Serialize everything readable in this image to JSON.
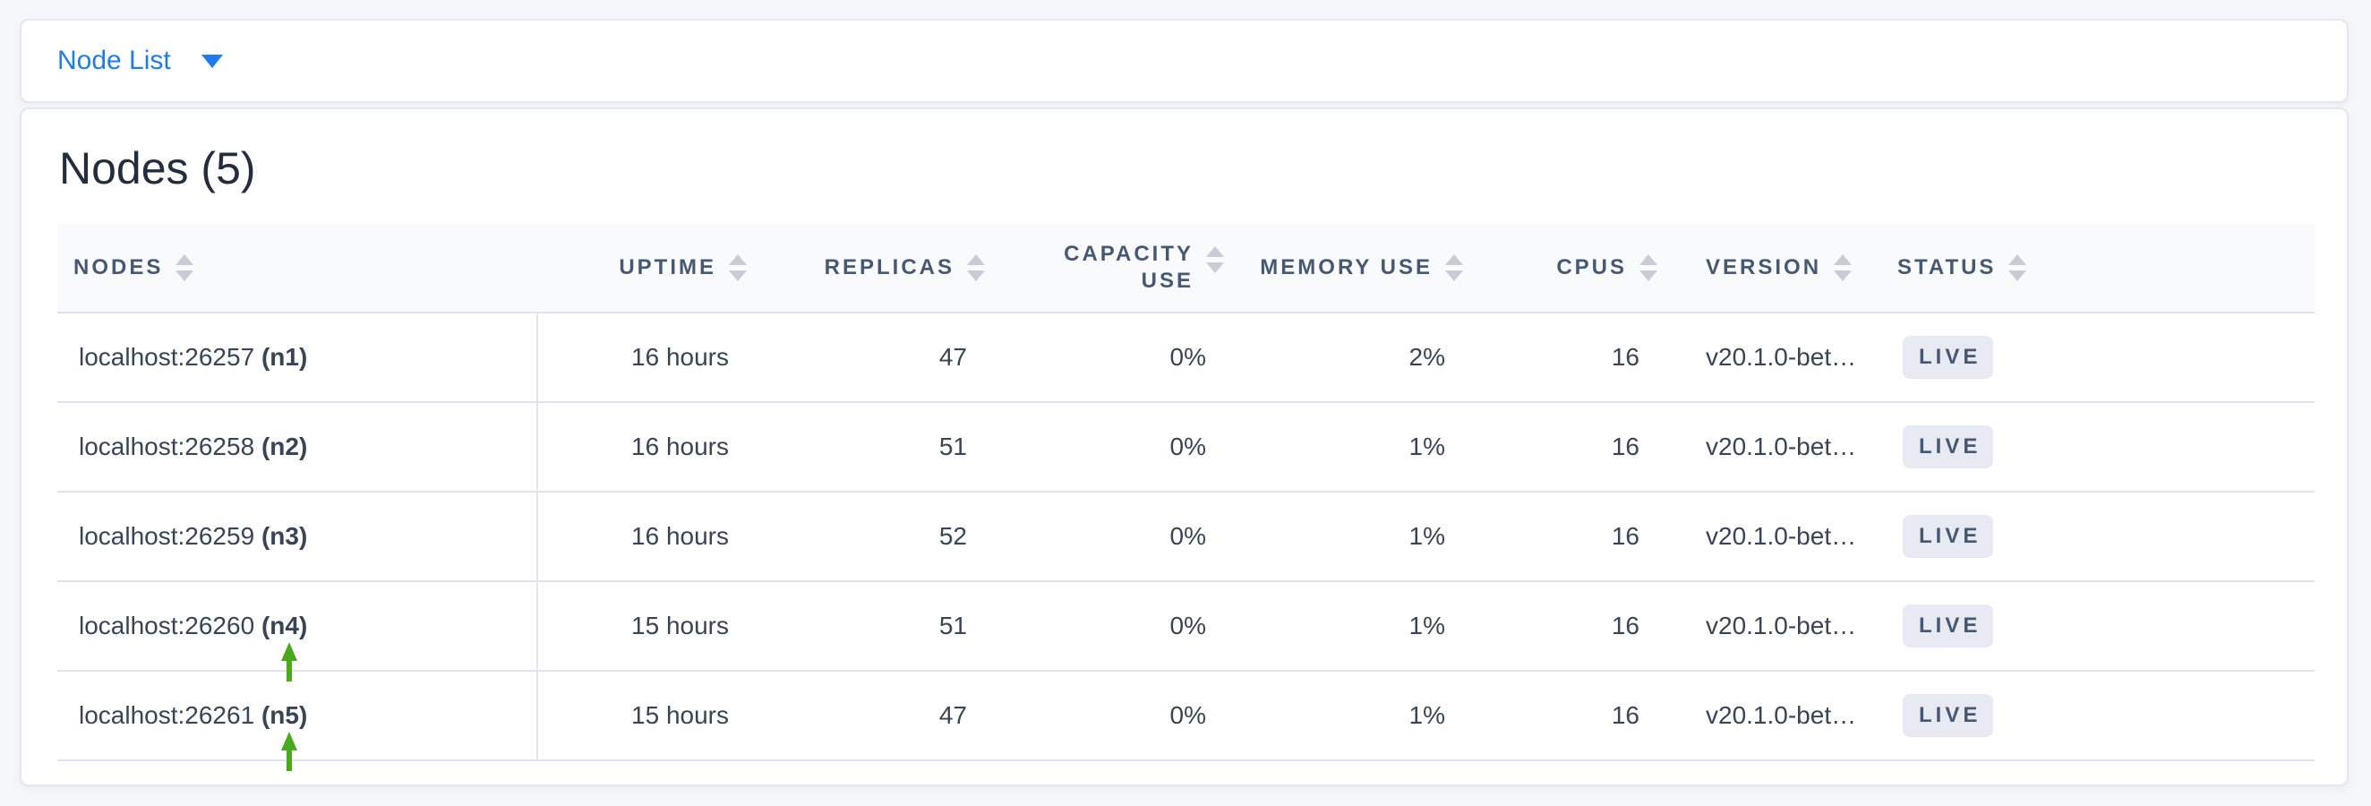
{
  "toolbar": {
    "dropdown_label": "Node List"
  },
  "main": {
    "title": "Nodes (5)",
    "table": {
      "columns": [
        {
          "key": "node",
          "label": "NODES",
          "align": "left"
        },
        {
          "key": "uptime",
          "label": "UPTIME",
          "align": "right"
        },
        {
          "key": "replicas",
          "label": "REPLICAS",
          "align": "right"
        },
        {
          "key": "capacity",
          "label": "CAPACITY USE",
          "align": "right",
          "lines": [
            "CAPACITY",
            "USE"
          ]
        },
        {
          "key": "memory",
          "label": "MEMORY USE",
          "align": "right"
        },
        {
          "key": "cpus",
          "label": "CPUS",
          "align": "right"
        },
        {
          "key": "version",
          "label": "VERSION",
          "align": "left"
        },
        {
          "key": "status",
          "label": "STATUS",
          "align": "left"
        }
      ],
      "rows": [
        {
          "node_address": "localhost:26257",
          "node_id": "(n1)",
          "uptime": "16 hours",
          "replicas": "47",
          "capacity_use": "0%",
          "memory_use": "2%",
          "cpus": "16",
          "version": "v20.1.0-bet…",
          "status": "LIVE",
          "annotated": false
        },
        {
          "node_address": "localhost:26258",
          "node_id": "(n2)",
          "uptime": "16 hours",
          "replicas": "51",
          "capacity_use": "0%",
          "memory_use": "1%",
          "cpus": "16",
          "version": "v20.1.0-bet…",
          "status": "LIVE",
          "annotated": false
        },
        {
          "node_address": "localhost:26259",
          "node_id": "(n3)",
          "uptime": "16 hours",
          "replicas": "52",
          "capacity_use": "0%",
          "memory_use": "1%",
          "cpus": "16",
          "version": "v20.1.0-bet…",
          "status": "LIVE",
          "annotated": false
        },
        {
          "node_address": "localhost:26260",
          "node_id": "(n4)",
          "uptime": "15 hours",
          "replicas": "51",
          "capacity_use": "0%",
          "memory_use": "1%",
          "cpus": "16",
          "version": "v20.1.0-bet…",
          "status": "LIVE",
          "annotated": true
        },
        {
          "node_address": "localhost:26261",
          "node_id": "(n5)",
          "uptime": "15 hours",
          "replicas": "47",
          "capacity_use": "0%",
          "memory_use": "1%",
          "cpus": "16",
          "version": "v20.1.0-bet…",
          "status": "LIVE",
          "annotated": true
        }
      ]
    }
  },
  "icons": {
    "dropdown_caret": "caret-down-icon",
    "sort": "sort-icon",
    "annotation": "annotation-arrow-up-icon"
  },
  "colors": {
    "page_background": "#f5f6fa",
    "card_background": "#ffffff",
    "card_border": "#e5e7ee",
    "accent_blue": "#1e7ceb",
    "header_text": "#475872",
    "body_text": "#394455",
    "title_text": "#242d3c",
    "table_header_background": "#f9fafb",
    "row_border": "#dfe3ed",
    "badge_background": "#e7eaf2",
    "badge_text": "#475872",
    "sort_icon": "#c7ccd5",
    "annotation_arrow_green": "#49a81b"
  }
}
